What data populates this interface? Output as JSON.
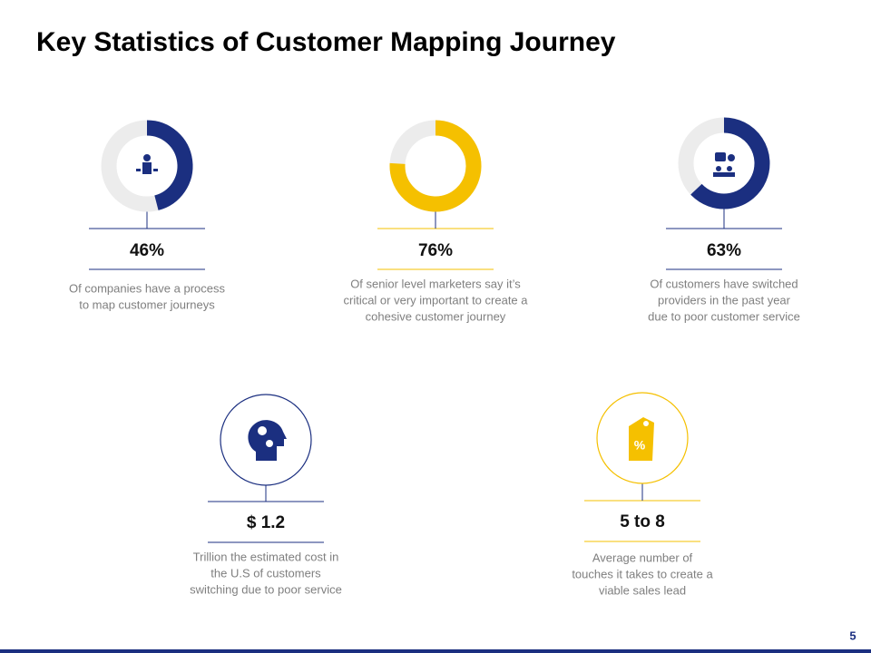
{
  "title": "Key Statistics of Customer Mapping Journey",
  "page_number": "5",
  "donut_stats": [
    {
      "value": 46,
      "label": "46%",
      "color": "#1b2f80",
      "description": [
        "Of companies have a process",
        "to map customer journeys"
      ]
    },
    {
      "value": 76,
      "label": "76%",
      "color": "#f5c000",
      "description": [
        "Of senior level marketers say it’s",
        "critical or very important to create a",
        "cohesive customer journey"
      ]
    },
    {
      "value": 63,
      "label": "63%",
      "color": "#1b2f80",
      "description": [
        "Of customers have switched",
        "providers in the past year",
        "due to poor customer service"
      ]
    }
  ],
  "icon_stats": [
    {
      "label": "$ 1.2",
      "color": "#1b2f80",
      "description": [
        "Trillion the estimated cost in",
        "the U.S of customers",
        "switching due to poor service"
      ]
    },
    {
      "label": "5 to 8",
      "color": "#f5c000",
      "description": [
        "Average number of",
        "touches it takes to create a",
        "viable sales lead"
      ]
    }
  ]
}
